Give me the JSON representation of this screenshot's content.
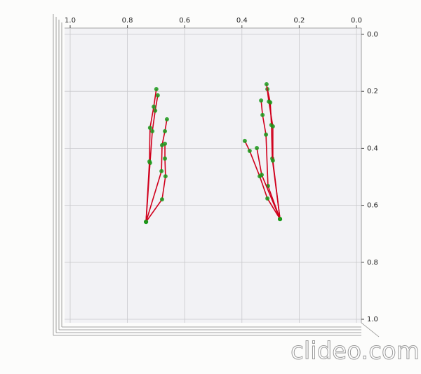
{
  "chart_data": {
    "type": "line",
    "markers": true,
    "marker_color": "#1a9a1a",
    "grid": true,
    "xlim": [
      1.0,
      0.0
    ],
    "ylim": [
      0.0,
      1.0
    ],
    "y_inverted": true,
    "xticks": [
      {
        "value": 1.0,
        "label": "1.0"
      },
      0.8,
      0.6,
      0.4,
      0.2,
      {
        "value": 0.0,
        "label": "0.0"
      }
    ],
    "yticks": [
      {
        "value": 0.0,
        "label": "0.0"
      },
      0.2,
      0.4,
      0.6,
      0.8,
      {
        "value": 1.0,
        "label": "1.0"
      }
    ],
    "series": [
      {
        "color": "#d0001c",
        "x": [
          0.735,
          0.679,
          0.667,
          0.669,
          0.669
        ],
        "values": [
          0.658,
          0.579,
          0.498,
          0.436,
          0.384
        ]
      },
      {
        "color": "#d0001c",
        "x": [
          0.735,
          0.681,
          0.679,
          0.669,
          0.662
        ],
        "values": [
          0.658,
          0.48,
          0.389,
          0.34,
          0.298
        ]
      },
      {
        "color": "#d0001c",
        "x": [
          0.735,
          0.721,
          0.713,
          0.703,
          0.694
        ],
        "values": [
          0.658,
          0.451,
          0.34,
          0.268,
          0.214
        ]
      },
      {
        "color": "#d0001c",
        "x": [
          0.735,
          0.723,
          0.721,
          0.708,
          0.699
        ],
        "values": [
          0.658,
          0.446,
          0.328,
          0.254,
          0.192
        ]
      },
      {
        "color": "#d0001c",
        "x": [
          0.267,
          0.311,
          0.338,
          0.373,
          0.39
        ],
        "values": [
          0.648,
          0.576,
          0.498,
          0.409,
          0.374
        ]
      },
      {
        "color": "#d0001c",
        "x": [
          0.267,
          0.309,
          0.316,
          0.328,
          0.333
        ],
        "values": [
          0.648,
          0.532,
          0.352,
          0.283,
          0.232
        ]
      },
      {
        "color": "#d0001c",
        "x": [
          0.267,
          0.294,
          0.297,
          0.301,
          0.311
        ],
        "values": [
          0.648,
          0.436,
          0.318,
          0.239,
          0.192
        ]
      },
      {
        "color": "#d0001c",
        "x": [
          0.267,
          0.292,
          0.292,
          0.306,
          0.314
        ],
        "values": [
          0.648,
          0.443,
          0.323,
          0.236,
          0.175
        ]
      },
      {
        "color": "#d0001c",
        "x": [
          0.267,
          0.331,
          0.348
        ],
        "values": [
          0.648,
          0.493,
          0.399
        ]
      }
    ],
    "watermark": "clideo.com"
  }
}
